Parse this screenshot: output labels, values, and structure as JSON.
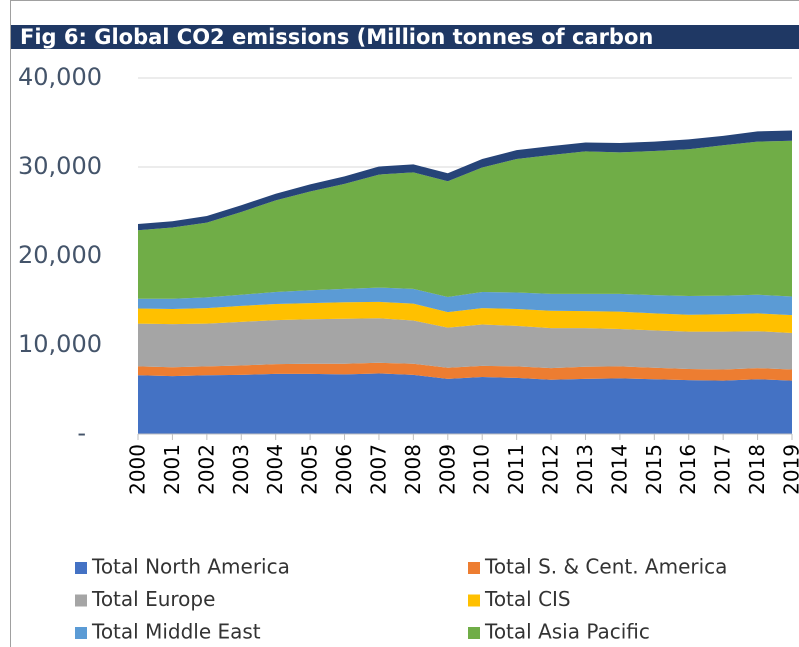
{
  "chart_data": {
    "type": "stacked_area",
    "title": "Fig 6: Global CO2 emissions (Million tonnes of carbon",
    "categories": [
      "2000",
      "2001",
      "2002",
      "2003",
      "2004",
      "2005",
      "2006",
      "2007",
      "2008",
      "2009",
      "2010",
      "2011",
      "2012",
      "2013",
      "2014",
      "2015",
      "2016",
      "2017",
      "2018",
      "2019"
    ],
    "series": [
      {
        "name": "Total North America",
        "color": "#4472c4",
        "values": [
          6600,
          6500,
          6600,
          6650,
          6750,
          6750,
          6700,
          6800,
          6650,
          6200,
          6400,
          6300,
          6100,
          6200,
          6250,
          6150,
          6050,
          6000,
          6150,
          6000
        ]
      },
      {
        "name": "Total S. & Cent. America",
        "color": "#ed7d31",
        "values": [
          1000,
          1000,
          1000,
          1050,
          1100,
          1150,
          1200,
          1200,
          1250,
          1250,
          1250,
          1300,
          1300,
          1350,
          1350,
          1300,
          1250,
          1250,
          1250,
          1250
        ]
      },
      {
        "name": "Total Europe",
        "color": "#a5a5a5",
        "values": [
          4800,
          4850,
          4800,
          4900,
          4950,
          5000,
          5050,
          5000,
          4850,
          4500,
          4650,
          4550,
          4500,
          4350,
          4200,
          4200,
          4200,
          4250,
          4150,
          4100
        ]
      },
      {
        "name": "Total CIS",
        "color": "#ffc000",
        "values": [
          1700,
          1700,
          1750,
          1800,
          1800,
          1800,
          1850,
          1850,
          1900,
          1750,
          1850,
          1900,
          1950,
          1900,
          1950,
          1900,
          1900,
          1950,
          2000,
          2000
        ]
      },
      {
        "name": "Total Middle East",
        "color": "#5b9bd5",
        "values": [
          1100,
          1150,
          1200,
          1250,
          1350,
          1450,
          1500,
          1600,
          1650,
          1700,
          1800,
          1850,
          1900,
          1950,
          2000,
          2050,
          2100,
          2100,
          2100,
          2100
        ]
      },
      {
        "name": "Total Asia Pacific",
        "color": "#70ad47",
        "values": [
          7700,
          8000,
          8400,
          9300,
          10300,
          11100,
          11800,
          12700,
          13100,
          13000,
          14000,
          15000,
          15600,
          16000,
          15900,
          16200,
          16500,
          16900,
          17200,
          17500
        ]
      },
      {
        "name": null,
        "color": "#264478",
        "values": [
          700,
          700,
          750,
          750,
          750,
          800,
          850,
          900,
          900,
          900,
          950,
          1000,
          1000,
          1000,
          1050,
          1050,
          1100,
          1050,
          1150,
          1150
        ]
      }
    ],
    "ylim": [
      0,
      40000
    ],
    "yticks": [
      {
        "value": 0,
        "label": "-"
      },
      {
        "value": 10000,
        "label": "10,000"
      },
      {
        "value": 20000,
        "label": "20,000"
      },
      {
        "value": 30000,
        "label": "30,000"
      },
      {
        "value": 40000,
        "label": "40,000"
      }
    ],
    "grid": true
  }
}
